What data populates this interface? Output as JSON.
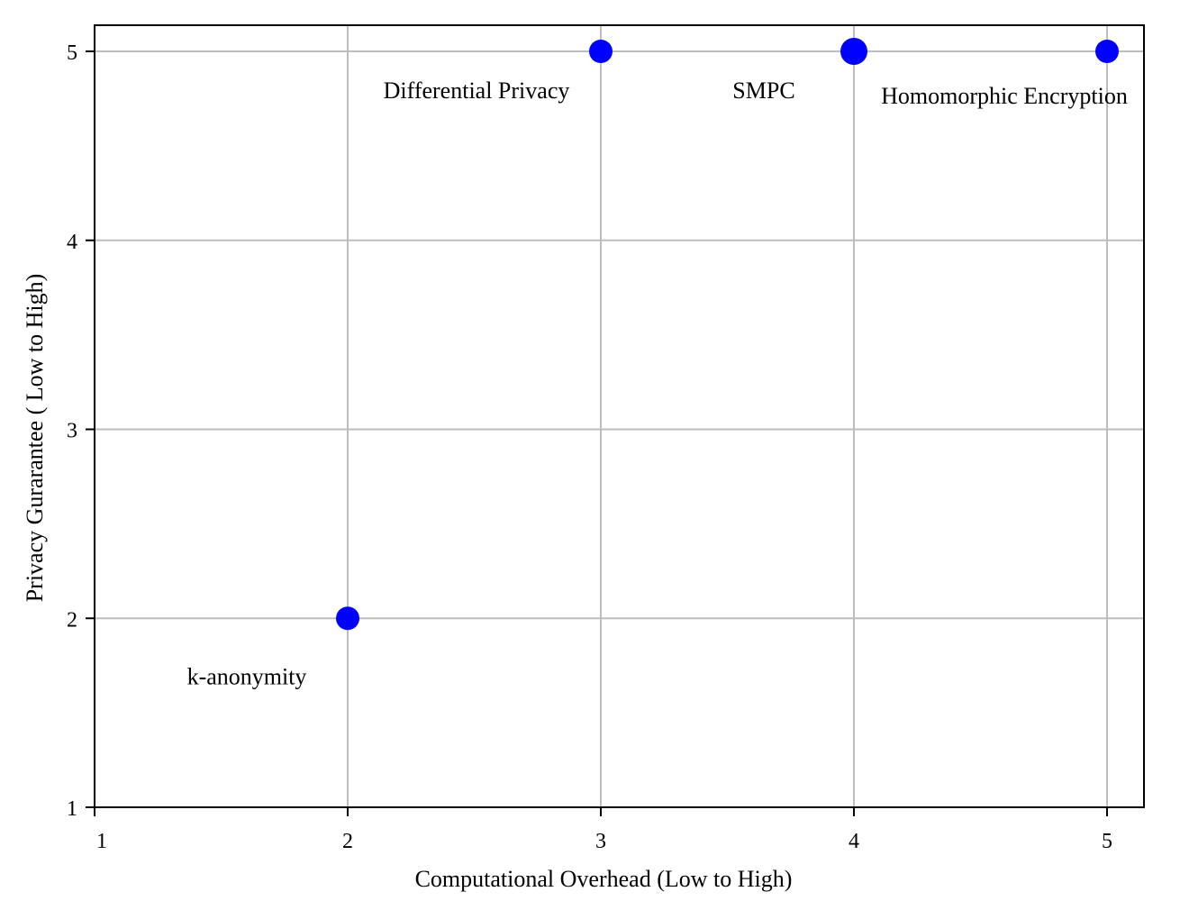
{
  "chart_data": {
    "type": "scatter",
    "title": "",
    "xlabel": "Computational Overhead (Low to High)",
    "ylabel": "Privacy Gurarantee ( Low to High)",
    "xlim": [
      1,
      5
    ],
    "ylim": [
      1,
      5
    ],
    "xticks": [
      "1",
      "2",
      "3",
      "4",
      "5"
    ],
    "yticks": [
      "1",
      "2",
      "3",
      "4",
      "5"
    ],
    "grid": true,
    "marker_color": "#0000ff",
    "points": [
      {
        "label": "k-anonymity",
        "x": 2,
        "y": 2
      },
      {
        "label": "Differential Privacy",
        "x": 3,
        "y": 5
      },
      {
        "label": "SMPC",
        "x": 4,
        "y": 5
      },
      {
        "label": "Homomorphic Encryption",
        "x": 5,
        "y": 5
      }
    ]
  }
}
